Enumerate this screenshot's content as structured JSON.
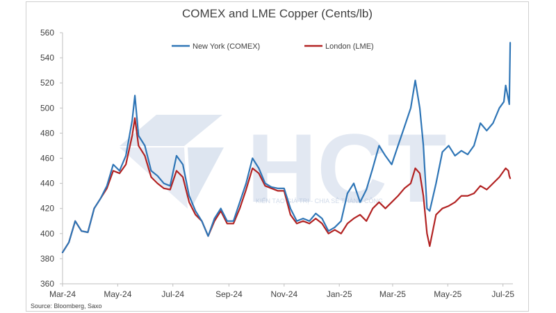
{
  "chart_data": {
    "type": "line",
    "title": "COMEX and LME Copper (Cents/lb)",
    "source": "Source: Bloomberg, Saxo",
    "xlabel": "",
    "ylabel": "",
    "ylim": [
      360,
      560
    ],
    "yticks": [
      360,
      380,
      400,
      420,
      440,
      460,
      480,
      500,
      520,
      540,
      560
    ],
    "xlim": [
      "2024-03-01",
      "2025-07-12"
    ],
    "xticks": [
      {
        "date": "2024-03-01",
        "label": "Mar-24"
      },
      {
        "date": "2024-05-01",
        "label": "May-24"
      },
      {
        "date": "2024-07-01",
        "label": "Jul-24"
      },
      {
        "date": "2024-09-01",
        "label": "Sep-24"
      },
      {
        "date": "2024-11-01",
        "label": "Nov-24"
      },
      {
        "date": "2025-01-01",
        "label": "Jan-25"
      },
      {
        "date": "2025-03-01",
        "label": "Mar-25"
      },
      {
        "date": "2025-05-01",
        "label": "May-25"
      },
      {
        "date": "2025-07-01",
        "label": "Jul-25"
      }
    ],
    "grid": false,
    "legend": "top",
    "series": [
      {
        "name": "New York (COMEX)",
        "color": "#2e75b6",
        "points": [
          [
            "2024-03-01",
            385
          ],
          [
            "2024-03-08",
            393
          ],
          [
            "2024-03-15",
            410
          ],
          [
            "2024-03-22",
            402
          ],
          [
            "2024-03-29",
            401
          ],
          [
            "2024-04-05",
            420
          ],
          [
            "2024-04-12",
            428
          ],
          [
            "2024-04-19",
            438
          ],
          [
            "2024-04-26",
            455
          ],
          [
            "2024-05-03",
            450
          ],
          [
            "2024-05-10",
            462
          ],
          [
            "2024-05-17",
            490
          ],
          [
            "2024-05-20",
            510
          ],
          [
            "2024-05-24",
            478
          ],
          [
            "2024-05-31",
            470
          ],
          [
            "2024-06-07",
            450
          ],
          [
            "2024-06-14",
            446
          ],
          [
            "2024-06-21",
            440
          ],
          [
            "2024-06-28",
            438
          ],
          [
            "2024-07-05",
            462
          ],
          [
            "2024-07-12",
            455
          ],
          [
            "2024-07-19",
            430
          ],
          [
            "2024-07-26",
            418
          ],
          [
            "2024-08-02",
            410
          ],
          [
            "2024-08-09",
            398
          ],
          [
            "2024-08-16",
            412
          ],
          [
            "2024-08-23",
            420
          ],
          [
            "2024-08-30",
            410
          ],
          [
            "2024-09-06",
            410
          ],
          [
            "2024-09-13",
            425
          ],
          [
            "2024-09-20",
            440
          ],
          [
            "2024-09-27",
            460
          ],
          [
            "2024-10-04",
            452
          ],
          [
            "2024-10-11",
            440
          ],
          [
            "2024-10-18",
            437
          ],
          [
            "2024-10-25",
            436
          ],
          [
            "2024-11-01",
            436
          ],
          [
            "2024-11-08",
            420
          ],
          [
            "2024-11-15",
            410
          ],
          [
            "2024-11-22",
            412
          ],
          [
            "2024-11-29",
            410
          ],
          [
            "2024-12-06",
            416
          ],
          [
            "2024-12-13",
            412
          ],
          [
            "2024-12-20",
            402
          ],
          [
            "2024-12-27",
            405
          ],
          [
            "2025-01-03",
            410
          ],
          [
            "2025-01-10",
            432
          ],
          [
            "2025-01-17",
            440
          ],
          [
            "2025-01-24",
            425
          ],
          [
            "2025-01-31",
            435
          ],
          [
            "2025-02-07",
            452
          ],
          [
            "2025-02-14",
            470
          ],
          [
            "2025-02-21",
            462
          ],
          [
            "2025-02-28",
            455
          ],
          [
            "2025-03-07",
            470
          ],
          [
            "2025-03-14",
            485
          ],
          [
            "2025-03-21",
            500
          ],
          [
            "2025-03-26",
            522
          ],
          [
            "2025-03-31",
            500
          ],
          [
            "2025-04-04",
            470
          ],
          [
            "2025-04-08",
            420
          ],
          [
            "2025-04-11",
            418
          ],
          [
            "2025-04-18",
            440
          ],
          [
            "2025-04-25",
            465
          ],
          [
            "2025-05-02",
            470
          ],
          [
            "2025-05-09",
            462
          ],
          [
            "2025-05-16",
            466
          ],
          [
            "2025-05-23",
            463
          ],
          [
            "2025-05-30",
            470
          ],
          [
            "2025-06-06",
            488
          ],
          [
            "2025-06-13",
            482
          ],
          [
            "2025-06-20",
            488
          ],
          [
            "2025-06-27",
            500
          ],
          [
            "2025-07-02",
            505
          ],
          [
            "2025-07-04",
            518
          ],
          [
            "2025-07-07",
            507
          ],
          [
            "2025-07-08",
            503
          ],
          [
            "2025-07-09",
            552
          ]
        ]
      },
      {
        "name": "London (LME)",
        "color": "#b22222",
        "points": [
          [
            "2024-03-01",
            385
          ],
          [
            "2024-03-08",
            393
          ],
          [
            "2024-03-15",
            410
          ],
          [
            "2024-03-22",
            402
          ],
          [
            "2024-03-29",
            401
          ],
          [
            "2024-04-05",
            420
          ],
          [
            "2024-04-12",
            428
          ],
          [
            "2024-04-19",
            436
          ],
          [
            "2024-04-26",
            450
          ],
          [
            "2024-05-03",
            448
          ],
          [
            "2024-05-10",
            455
          ],
          [
            "2024-05-17",
            478
          ],
          [
            "2024-05-20",
            492
          ],
          [
            "2024-05-24",
            470
          ],
          [
            "2024-05-31",
            462
          ],
          [
            "2024-06-07",
            445
          ],
          [
            "2024-06-14",
            440
          ],
          [
            "2024-06-21",
            436
          ],
          [
            "2024-06-28",
            435
          ],
          [
            "2024-07-05",
            450
          ],
          [
            "2024-07-12",
            445
          ],
          [
            "2024-07-19",
            425
          ],
          [
            "2024-07-26",
            415
          ],
          [
            "2024-08-02",
            410
          ],
          [
            "2024-08-09",
            398
          ],
          [
            "2024-08-16",
            410
          ],
          [
            "2024-08-23",
            418
          ],
          [
            "2024-08-30",
            408
          ],
          [
            "2024-09-06",
            408
          ],
          [
            "2024-09-13",
            420
          ],
          [
            "2024-09-20",
            435
          ],
          [
            "2024-09-27",
            452
          ],
          [
            "2024-10-04",
            448
          ],
          [
            "2024-10-11",
            438
          ],
          [
            "2024-10-18",
            436
          ],
          [
            "2024-10-25",
            434
          ],
          [
            "2024-11-01",
            434
          ],
          [
            "2024-11-08",
            415
          ],
          [
            "2024-11-15",
            408
          ],
          [
            "2024-11-22",
            410
          ],
          [
            "2024-11-29",
            408
          ],
          [
            "2024-12-06",
            412
          ],
          [
            "2024-12-13",
            408
          ],
          [
            "2024-12-20",
            400
          ],
          [
            "2024-12-27",
            403
          ],
          [
            "2025-01-03",
            400
          ],
          [
            "2025-01-10",
            408
          ],
          [
            "2025-01-17",
            412
          ],
          [
            "2025-01-24",
            415
          ],
          [
            "2025-01-31",
            410
          ],
          [
            "2025-02-07",
            420
          ],
          [
            "2025-02-14",
            425
          ],
          [
            "2025-02-21",
            420
          ],
          [
            "2025-02-28",
            425
          ],
          [
            "2025-03-07",
            430
          ],
          [
            "2025-03-14",
            436
          ],
          [
            "2025-03-21",
            440
          ],
          [
            "2025-03-26",
            452
          ],
          [
            "2025-03-31",
            448
          ],
          [
            "2025-04-04",
            430
          ],
          [
            "2025-04-08",
            400
          ],
          [
            "2025-04-11",
            390
          ],
          [
            "2025-04-18",
            415
          ],
          [
            "2025-04-25",
            420
          ],
          [
            "2025-05-02",
            422
          ],
          [
            "2025-05-09",
            425
          ],
          [
            "2025-05-16",
            430
          ],
          [
            "2025-05-23",
            430
          ],
          [
            "2025-05-30",
            432
          ],
          [
            "2025-06-06",
            438
          ],
          [
            "2025-06-13",
            435
          ],
          [
            "2025-06-20",
            440
          ],
          [
            "2025-06-27",
            445
          ],
          [
            "2025-07-02",
            450
          ],
          [
            "2025-07-04",
            452
          ],
          [
            "2025-07-07",
            450
          ],
          [
            "2025-07-08",
            446
          ],
          [
            "2025-07-09",
            444
          ]
        ]
      }
    ]
  },
  "watermark": {
    "logo_text": "HCT",
    "tagline": "KIẾN TẠO GIÁ TRỊ - CHIA SẺ THÀNH CÔNG",
    "color": "#c7d3e6"
  }
}
